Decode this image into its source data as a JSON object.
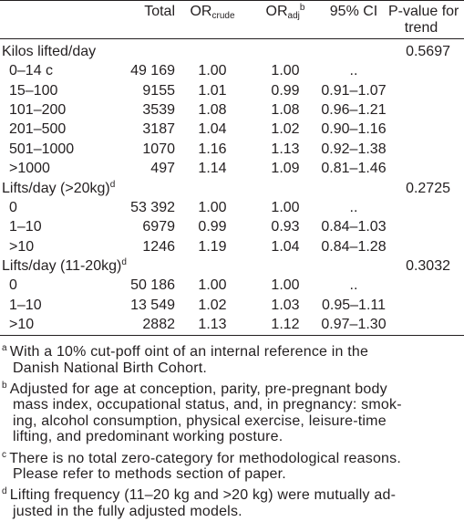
{
  "table": {
    "header": {
      "total": "Total",
      "or_crude": {
        "base": "OR",
        "sub": "crude"
      },
      "or_adj": {
        "base": "OR",
        "sub": "adj",
        "sup": "b"
      },
      "ci": "95% CI",
      "p_trend": [
        "P-value for",
        "trend"
      ]
    },
    "rows": [
      {
        "label": "Kilos lifted/day",
        "p": "0.5697"
      },
      {
        "label": "0–14 c",
        "total": "49 169",
        "or_crude": "1.00",
        "or_adj": "1.00",
        "ci": ".."
      },
      {
        "label": "15–100",
        "total": "9155",
        "or_crude": "1.01",
        "or_adj": "0.99",
        "ci": "0.91–1.07"
      },
      {
        "label": "101–200",
        "total": "3539",
        "or_crude": "1.08",
        "or_adj": "1.08",
        "ci": "0.96–1.21"
      },
      {
        "label": "201–500",
        "total": "3187",
        "or_crude": "1.04",
        "or_adj": "1.02",
        "ci": "0.90–1.16"
      },
      {
        "label": "501–1000",
        "total": "1070",
        "or_crude": "1.16",
        "or_adj": "1.13",
        "ci": "0.92–1.38"
      },
      {
        "label": ">1000",
        "total": "497",
        "or_crude": "1.14",
        "or_adj": "1.09",
        "ci": "0.81–1.46"
      },
      {
        "label": "Lifts/day (>20kg)",
        "label_sup": "d",
        "p": "0.2725"
      },
      {
        "label": "0",
        "total": "53 392",
        "or_crude": "1.00",
        "or_adj": "1.00",
        "ci": ".."
      },
      {
        "label": "1–10",
        "total": "6979",
        "or_crude": "0.99",
        "or_adj": "0.93",
        "ci": "0.84–1.03"
      },
      {
        "label": ">10",
        "total": "1246",
        "or_crude": "1.19",
        "or_adj": "1.04",
        "ci": "0.84–1.28"
      },
      {
        "label": "Lifts/day (11-20kg)",
        "label_sup": "d",
        "p": "0.3032"
      },
      {
        "label": "0",
        "total": "50 186",
        "or_crude": "1.00",
        "or_adj": "1.00",
        "ci": ".."
      },
      {
        "label": "1–10",
        "total": "13 549",
        "or_crude": "1.02",
        "or_adj": "1.03",
        "ci": "0.95–1.11"
      },
      {
        "label": ">10",
        "total": "2882",
        "or_crude": "1.13",
        "or_adj": "1.12",
        "ci": "0.97–1.30"
      }
    ]
  },
  "footnotes": [
    {
      "marker": "a",
      "lines": [
        "With a 10% cut-poff oint of an internal reference in the",
        "Danish National Birth Cohort."
      ]
    },
    {
      "marker": "b",
      "lines": [
        "Adjusted for age at conception, parity, pre-pregnant body",
        "mass index, occupational status, and, in pregnancy: smok-",
        "ing, alcohol consumption, physical exercise, leisure-time",
        "lifting, and predominant working posture."
      ]
    },
    {
      "marker": "c",
      "lines": [
        "There is no total zero-category for methodological reasons.",
        "Please refer to methods section of paper."
      ]
    },
    {
      "marker": "d",
      "lines": [
        "Lifting frequency (11–20 kg and >20 kg) were mutually ad-",
        "justed in the fully adjusted models."
      ]
    }
  ]
}
